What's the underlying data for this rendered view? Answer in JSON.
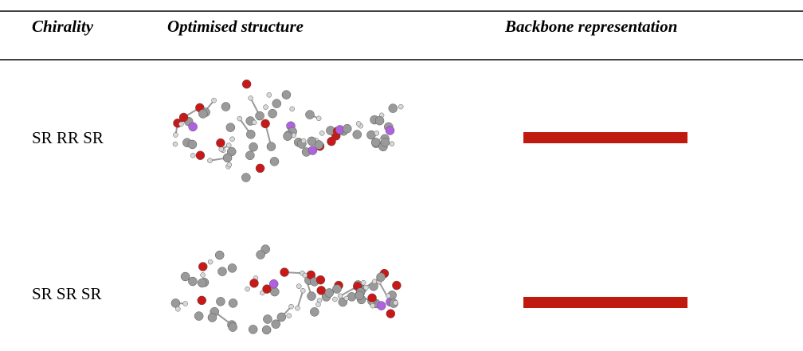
{
  "table": {
    "headers": [
      "Chirality",
      "Optimised structure",
      "Backbone representation"
    ],
    "rows": [
      [
        "SR RR SR"
      ],
      [
        "SR SR SR"
      ]
    ]
  }
}
